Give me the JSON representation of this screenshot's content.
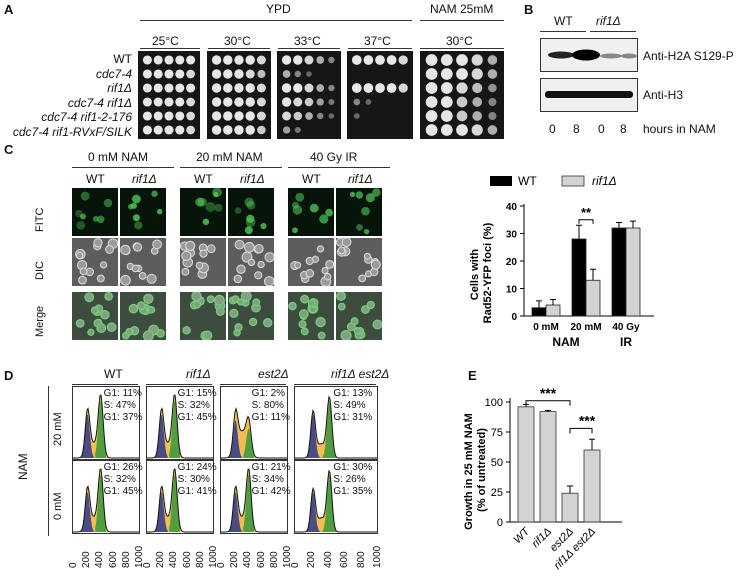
{
  "panels": {
    "A": "A",
    "B": "B",
    "C": "C",
    "D": "D",
    "E": "E"
  },
  "panelA": {
    "header_ypd": "YPD",
    "header_nam": "NAM 25mM",
    "temps": [
      "25°C",
      "30°C",
      "33°C",
      "37°C",
      "30°C"
    ],
    "strains": [
      "WT",
      "cdc7-4",
      "rif1Δ",
      "cdc7-4 rif1Δ",
      "cdc7-4 rif1-2-176",
      "cdc7-4 rif1-RVxF/SILK"
    ]
  },
  "panelB": {
    "wt": "WT",
    "rif1": "rif1Δ",
    "band1": "Anti-H2A S129-P",
    "band2": "Anti-H3",
    "hours": [
      "0",
      "8",
      "0",
      "8"
    ],
    "xlabel": "hours in NAM"
  },
  "panelC": {
    "conditions": [
      "0 mM NAM",
      "20 mM NAM",
      "40 Gy IR"
    ],
    "wt": "WT",
    "rif1": "rif1Δ",
    "rows": [
      "FITC",
      "DIC",
      "Merge"
    ],
    "legend_wt": "WT",
    "legend_rif1": "rif1Δ",
    "colors": {
      "wt": "#000000",
      "rif1": "#d3d3d3"
    },
    "sig": "**"
  },
  "panelD": {
    "columns": [
      "WT",
      "rif1Δ",
      "est2Δ",
      "rif1Δ est2Δ"
    ],
    "side_label": "NAM",
    "rows": [
      "20 mM",
      "0 mM"
    ],
    "xticks": [
      "0",
      "200",
      "400",
      "600",
      "800",
      "1000"
    ],
    "stats": [
      [
        [
          "G1: 11%",
          "S: 47%",
          "G1: 37%"
        ],
        [
          "G1: 15%",
          "S: 32%",
          "G1: 45%"
        ],
        [
          "G1: 2%",
          "S: 80%",
          "G1: 11%"
        ],
        [
          "G1: 13%",
          "S: 49%",
          "G1: 31%"
        ]
      ],
      [
        [
          "G1: 26%",
          "S: 32%",
          "G1: 45%"
        ],
        [
          "G1: 24%",
          "S: 30%",
          "G1: 41%"
        ],
        [
          "G1: 21%",
          "S: 34%",
          "G1: 42%"
        ],
        [
          "G1: 30%",
          "S: 26%",
          "G1: 35%"
        ]
      ]
    ]
  },
  "panelE": {
    "sig1": "***",
    "sig2": "***",
    "bar_color": "#d3d3d3"
  },
  "chart_data": [
    {
      "type": "bar",
      "title": "",
      "ylabel": "Cells with Rad52-YFP foci (%)",
      "xlabel": "",
      "categories": [
        "0 mM",
        "20 mM",
        "40 Gy"
      ],
      "groups": [
        "NAM",
        "IR"
      ],
      "series": [
        {
          "name": "WT",
          "values": [
            3,
            28,
            32
          ],
          "errors": [
            2.5,
            5,
            2
          ]
        },
        {
          "name": "rif1Δ",
          "values": [
            4,
            13,
            32
          ],
          "errors": [
            2,
            4,
            2.5
          ]
        }
      ],
      "ylim": [
        0,
        40
      ],
      "yticks": [
        "0",
        "10",
        "20",
        "30",
        "40"
      ]
    },
    {
      "type": "bar",
      "title": "",
      "ylabel": "Growth in 25 mM NAM (% of untreated)",
      "xlabel": "",
      "categories": [
        "WT",
        "rif1Δ",
        "est2Δ",
        "rif1Δ est2Δ"
      ],
      "values": [
        96,
        92,
        24,
        60
      ],
      "errors": [
        2,
        1,
        6,
        9
      ],
      "ylim": [
        0,
        100
      ],
      "yticks": [
        "0",
        "25",
        "50",
        "75",
        "100"
      ]
    }
  ]
}
